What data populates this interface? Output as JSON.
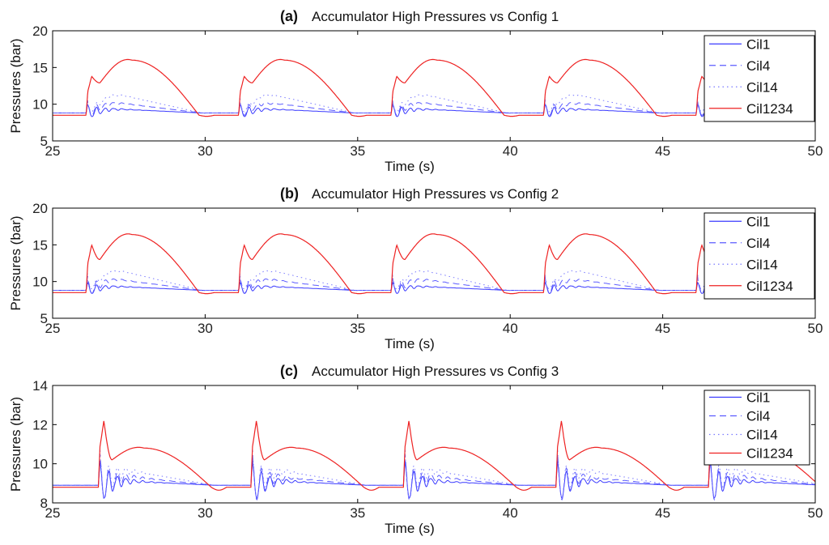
{
  "chart_data": [
    {
      "type": "line",
      "label": "(a)",
      "title": "Accumulator High Pressures vs Config 1",
      "xlabel": "Time (s)",
      "ylabel": "Pressures (bar)",
      "xlim": [
        25,
        50
      ],
      "ylim": [
        5,
        20
      ],
      "xticks": [
        25,
        30,
        35,
        40,
        45,
        50
      ],
      "yticks": [
        5,
        10,
        15,
        20
      ],
      "legend_position": "top-right",
      "grid": false,
      "cycle_starts": [
        26.1,
        31.1,
        36.1,
        41.1,
        46.1
      ],
      "series": [
        {
          "name": "Cil1",
          "color": "#3a3aff",
          "style": "solid",
          "baseline": 8.8,
          "peak": 10.4,
          "plateau": 9.3,
          "osc_amp": 0.9
        },
        {
          "name": "Cil4",
          "color": "#5c5cff",
          "style": "dashed",
          "baseline": 8.8,
          "peak": 11.2,
          "plateau": 10.1,
          "osc_amp": 0.8
        },
        {
          "name": "Cil14",
          "color": "#7a7aff",
          "style": "dotted",
          "baseline": 8.8,
          "peak": 11.9,
          "plateau": 11.2,
          "osc_amp": 0.6
        },
        {
          "name": "Cil1234",
          "color": "#ee2222",
          "style": "solid",
          "baseline": 8.5,
          "peak": 13.8,
          "dip": 12.9,
          "hump": 16.0,
          "hump_time": 27.6
        }
      ]
    },
    {
      "type": "line",
      "label": "(b)",
      "title": "Accumulator High Pressures vs Config 2",
      "xlabel": "Time (s)",
      "ylabel": "Pressures (bar)",
      "xlim": [
        25,
        50
      ],
      "ylim": [
        5,
        20
      ],
      "xticks": [
        25,
        30,
        35,
        40,
        45,
        50
      ],
      "yticks": [
        5,
        10,
        15,
        20
      ],
      "legend_position": "top-right",
      "grid": false,
      "cycle_starts": [
        26.1,
        31.1,
        36.1,
        41.1,
        46.1
      ],
      "series": [
        {
          "name": "Cil1",
          "color": "#3a3aff",
          "style": "solid",
          "baseline": 8.8,
          "peak": 10.3,
          "plateau": 9.3,
          "osc_amp": 0.9
        },
        {
          "name": "Cil4",
          "color": "#5c5cff",
          "style": "dashed",
          "baseline": 8.8,
          "peak": 11.5,
          "plateau": 10.2,
          "osc_amp": 0.8
        },
        {
          "name": "Cil14",
          "color": "#7a7aff",
          "style": "dotted",
          "baseline": 8.8,
          "peak": 12.1,
          "plateau": 11.4,
          "osc_amp": 0.6
        },
        {
          "name": "Cil1234",
          "color": "#ee2222",
          "style": "solid",
          "baseline": 8.5,
          "peak": 15.0,
          "dip": 13.0,
          "hump": 16.4,
          "hump_time": 27.6
        }
      ]
    },
    {
      "type": "line",
      "label": "(c)",
      "title": "Accumulator High Pressures vs Config 3",
      "xlabel": "Time (s)",
      "ylabel": "Pressures (bar)",
      "xlim": [
        25,
        50
      ],
      "ylim": [
        8,
        14
      ],
      "xticks": [
        25,
        30,
        35,
        40,
        45,
        50
      ],
      "yticks": [
        8,
        10,
        12,
        14
      ],
      "legend_position": "top-right",
      "grid": false,
      "cycle_starts": [
        26.5,
        31.5,
        36.5,
        41.5,
        46.5
      ],
      "series": [
        {
          "name": "Cil1",
          "color": "#3a3aff",
          "style": "solid",
          "baseline": 8.9,
          "peak": 10.3,
          "plateau": 9.1,
          "osc_amp": 0.7
        },
        {
          "name": "Cil4",
          "color": "#5c5cff",
          "style": "dashed",
          "baseline": 8.9,
          "peak": 10.7,
          "plateau": 9.3,
          "osc_amp": 0.6
        },
        {
          "name": "Cil14",
          "color": "#7a7aff",
          "style": "dotted",
          "baseline": 8.9,
          "peak": 11.0,
          "plateau": 9.6,
          "osc_amp": 0.5
        },
        {
          "name": "Cil1234",
          "color": "#ee2222",
          "style": "solid",
          "baseline": 8.8,
          "peak": 12.2,
          "dip": 10.2,
          "hump": 10.8,
          "hump_time": 28.0
        }
      ]
    }
  ]
}
